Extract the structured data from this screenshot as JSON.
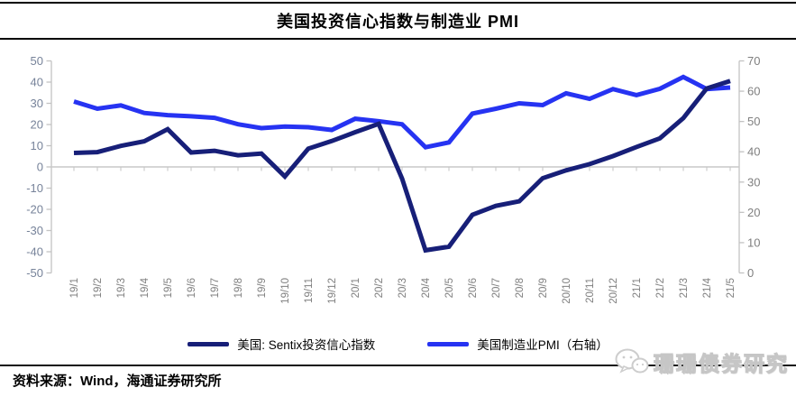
{
  "title": "美国投资信心指数与制造业 PMI",
  "legend": {
    "items": [
      {
        "label": "美国: Sentix投资信心指数",
        "color": "#171f78"
      },
      {
        "label": "美国制造业PMI（右轴）",
        "color": "#2633f2"
      }
    ]
  },
  "footer": {
    "source": "资料来源：Wind，海通证券研究所"
  },
  "watermark": {
    "label": "珊珊债券研究",
    "icon": "wechat-bubbles-icon"
  },
  "chart_data": {
    "type": "line",
    "title": "美国投资信心指数与制造业 PMI",
    "categories": [
      "19/1",
      "19/2",
      "19/3",
      "19/4",
      "19/5",
      "19/6",
      "19/7",
      "19/8",
      "19/9",
      "19/10",
      "19/11",
      "19/12",
      "20/1",
      "20/2",
      "20/3",
      "20/4",
      "20/5",
      "20/6",
      "20/7",
      "20/8",
      "20/9",
      "20/10",
      "20/11",
      "20/12",
      "21/1",
      "21/2",
      "21/3",
      "21/4",
      "21/5"
    ],
    "series": [
      {
        "name": "美国: Sentix投资信心指数",
        "axis": "left",
        "color": "#171f78",
        "values": [
          6.6,
          7,
          9.9,
          12.1,
          17.8,
          6.8,
          7.6,
          5.5,
          6.3,
          -4.5,
          8.6,
          12.2,
          16.4,
          20.3,
          -5.5,
          -39.3,
          -37.6,
          -22.6,
          -18.4,
          -16.2,
          -5.3,
          -1.6,
          1.3,
          5.1,
          9.4,
          13.5,
          23,
          37,
          40.5
        ]
      },
      {
        "name": "美国制造业PMI（右轴）",
        "axis": "right",
        "color": "#2633f2",
        "values": [
          56.6,
          54.2,
          55.3,
          52.8,
          52.1,
          51.7,
          51.2,
          49.1,
          47.8,
          48.3,
          48.1,
          47.2,
          50.9,
          50.1,
          49.1,
          41.5,
          43.1,
          52.6,
          54.2,
          56,
          55.4,
          59.3,
          57.5,
          60.7,
          58.7,
          60.8,
          64.7,
          60.7,
          61.2
        ]
      }
    ],
    "left_axis": {
      "min": -50,
      "max": 50,
      "step": 10,
      "tick_labels": [
        "50",
        "40",
        "30",
        "20",
        "10",
        "0",
        "-10",
        "-20",
        "-30",
        "-40",
        "-50"
      ]
    },
    "right_axis": {
      "min": 0,
      "max": 70,
      "step": 10,
      "tick_labels": [
        "70",
        "60",
        "50",
        "40",
        "30",
        "20",
        "10",
        "0"
      ]
    },
    "grid": "zero-line-only",
    "legend_position": "bottom",
    "axis_line_color": "#c3c3c3",
    "zero_line_color": "#c9c9c9",
    "left_label_color": "#77839a",
    "right_label_color": "#7f7f7f",
    "x_label_color": "#808080"
  }
}
